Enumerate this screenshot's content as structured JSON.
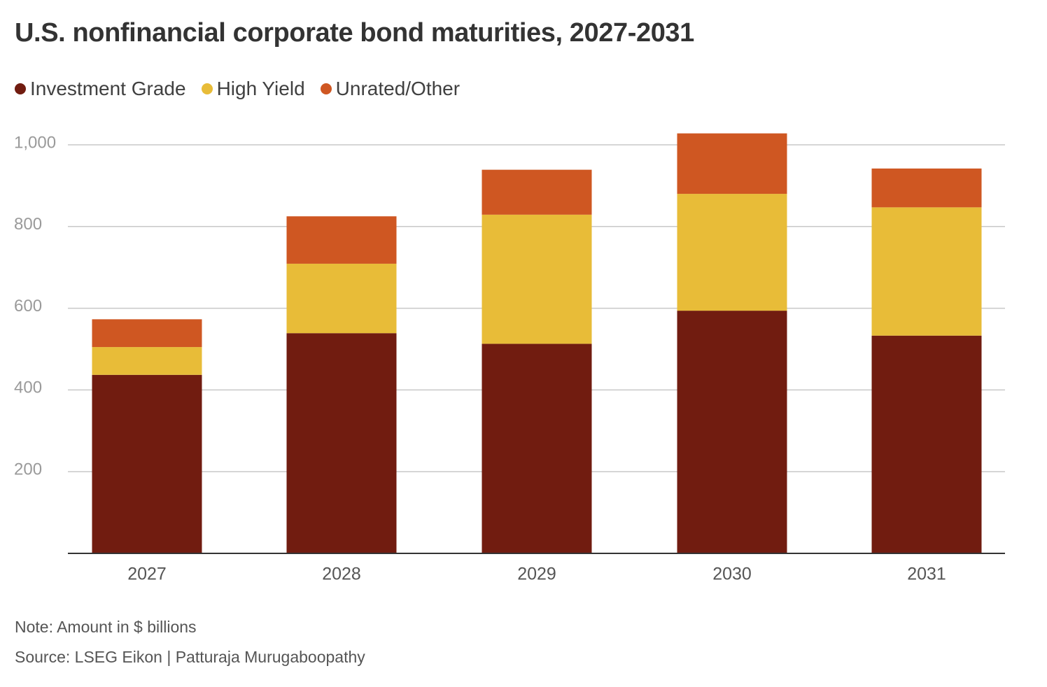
{
  "title": "U.S. nonfinancial corporate bond maturities, 2027-2031",
  "note": "Note: Amount in $ billions",
  "source": "Source: LSEG Eikon  | Patturaja Murugaboopathy",
  "colors": {
    "investment_grade": "#711c10",
    "high_yield": "#e8bc38",
    "unrated_other": "#cf5722",
    "grid": "#c8c8c8",
    "axis": "#333333",
    "tick_text": "#9a9a9a",
    "category_text": "#555555"
  },
  "chart_data": {
    "type": "bar",
    "stacked": true,
    "categories": [
      "2027",
      "2028",
      "2029",
      "2030",
      "2031"
    ],
    "series": [
      {
        "name": "Investment Grade",
        "values": [
          437,
          539,
          513,
          594,
          533
        ]
      },
      {
        "name": "High Yield",
        "values": [
          68,
          170,
          316,
          286,
          314
        ]
      },
      {
        "name": "Unrated/Other",
        "values": [
          68,
          116,
          110,
          148,
          95
        ]
      }
    ],
    "yticks": [
      200,
      400,
      600,
      800,
      1000
    ],
    "ytick_labels": [
      "200",
      "400",
      "600",
      "800",
      "1,000"
    ],
    "ylim": [
      0,
      1000
    ],
    "grid": true,
    "legend_position": "top-left",
    "xlabel": "",
    "ylabel": ""
  }
}
